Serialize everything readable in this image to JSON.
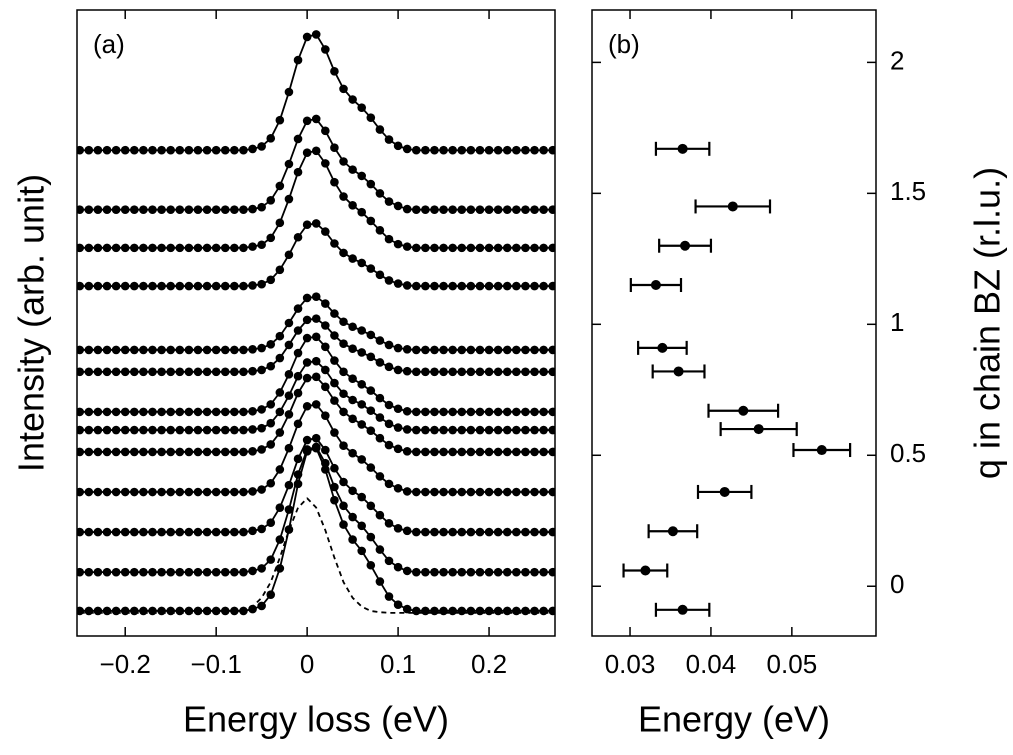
{
  "chart_data": [
    {
      "type": "line",
      "annotation": "(a)",
      "xlabel": "Energy loss (eV)",
      "ylabel": "Intensity (arb. unit)",
      "xlim": [
        -0.253,
        0.2725
      ],
      "ylim": [
        0,
        10
      ],
      "xticks": [
        {
          "value": -0.2,
          "label": "−0.2"
        },
        {
          "value": -0.1,
          "label": "−0.1"
        },
        0,
        0.1,
        0.2
      ],
      "x": [
        -0.25,
        -0.24,
        -0.23,
        -0.22,
        -0.21,
        -0.2,
        -0.19,
        -0.18,
        -0.17,
        -0.16,
        -0.15,
        -0.14,
        -0.13,
        -0.12,
        -0.11,
        -0.1,
        -0.09,
        -0.08,
        -0.07,
        -0.06,
        -0.05,
        -0.04,
        -0.03,
        -0.02,
        -0.01,
        0,
        0.01,
        0.02,
        0.03,
        0.04,
        0.05,
        0.06,
        0.07,
        0.08,
        0.09,
        0.1,
        0.11,
        0.12,
        0.13,
        0.14,
        0.15,
        0.16,
        0.17,
        0.18,
        0.19,
        0.2,
        0.21,
        0.22,
        0.23,
        0.24,
        0.25,
        0.26,
        0.27
      ],
      "series": [
        {
          "color": "#000000",
          "dashed": true,
          "markers": false,
          "values": [
            0.37,
            0.37,
            0.37,
            0.37,
            0.37,
            0.37,
            0.37,
            0.37,
            0.37,
            0.37,
            0.37,
            0.37,
            0.37,
            0.37,
            0.37,
            0.37,
            0.37,
            0.38,
            0.4,
            0.47,
            0.61,
            0.86,
            1.25,
            1.69,
            2.05,
            2.2,
            2.05,
            1.69,
            1.25,
            0.86,
            0.61,
            0.47,
            0.4,
            0.38,
            0.37,
            0.37,
            0.37,
            0.37,
            0.37,
            0.37,
            0.37,
            0.37,
            0.37,
            0.37,
            0.37,
            0.37,
            0.37,
            0.37,
            0.37,
            0.37,
            0.37,
            0.37,
            0.37
          ]
        },
        {
          "color": "#000000",
          "markers": true,
          "values": [
            7.76,
            7.76,
            7.76,
            7.76,
            7.76,
            7.76,
            7.76,
            7.76,
            7.76,
            7.76,
            7.76,
            7.76,
            7.76,
            7.76,
            7.76,
            7.76,
            7.76,
            7.76,
            7.76,
            7.78,
            7.82,
            7.95,
            8.24,
            8.69,
            9.2,
            9.57,
            9.61,
            9.37,
            9.02,
            8.74,
            8.57,
            8.44,
            8.28,
            8.09,
            7.93,
            7.83,
            7.78,
            7.76,
            7.76,
            7.76,
            7.76,
            7.76,
            7.76,
            7.76,
            7.76,
            7.76,
            7.76,
            7.76,
            7.76,
            7.76,
            7.76,
            7.76,
            7.76
          ]
        },
        {
          "color": "#000000",
          "markers": true,
          "values": [
            6.81,
            6.81,
            6.81,
            6.81,
            6.81,
            6.81,
            6.81,
            6.81,
            6.81,
            6.81,
            6.81,
            6.81,
            6.81,
            6.81,
            6.81,
            6.81,
            6.81,
            6.81,
            6.81,
            6.82,
            6.85,
            6.96,
            7.19,
            7.54,
            7.94,
            8.23,
            8.26,
            8.07,
            7.8,
            7.58,
            7.45,
            7.35,
            7.22,
            7.07,
            6.94,
            6.87,
            6.82,
            6.81,
            6.81,
            6.81,
            6.81,
            6.81,
            6.81,
            6.81,
            6.81,
            6.81,
            6.81,
            6.81,
            6.81,
            6.81,
            6.81,
            6.81,
            6.81
          ]
        },
        {
          "color": "#000000",
          "markers": true,
          "values": [
            6.2,
            6.2,
            6.2,
            6.2,
            6.2,
            6.2,
            6.2,
            6.2,
            6.2,
            6.2,
            6.2,
            6.2,
            6.2,
            6.2,
            6.2,
            6.2,
            6.2,
            6.2,
            6.2,
            6.22,
            6.25,
            6.36,
            6.6,
            6.98,
            7.41,
            7.72,
            7.75,
            7.55,
            7.25,
            7.02,
            6.88,
            6.77,
            6.63,
            6.48,
            6.34,
            6.26,
            6.22,
            6.2,
            6.2,
            6.2,
            6.2,
            6.2,
            6.2,
            6.2,
            6.2,
            6.2,
            6.2,
            6.2,
            6.2,
            6.2,
            6.2,
            6.2,
            6.2
          ]
        },
        {
          "color": "#000000",
          "markers": true,
          "values": [
            5.59,
            5.59,
            5.59,
            5.59,
            5.59,
            5.59,
            5.59,
            5.59,
            5.59,
            5.59,
            5.59,
            5.59,
            5.59,
            5.59,
            5.59,
            5.59,
            5.59,
            5.59,
            5.59,
            5.6,
            5.62,
            5.69,
            5.85,
            6.09,
            6.37,
            6.57,
            6.59,
            6.46,
            6.27,
            6.12,
            6.03,
            5.96,
            5.87,
            5.77,
            5.68,
            5.63,
            5.6,
            5.59,
            5.59,
            5.59,
            5.59,
            5.59,
            5.59,
            5.59,
            5.59,
            5.59,
            5.59,
            5.59,
            5.59,
            5.59,
            5.59,
            5.59,
            5.59
          ]
        },
        {
          "color": "#000000",
          "markers": true,
          "values": [
            4.57,
            4.57,
            4.57,
            4.57,
            4.57,
            4.57,
            4.57,
            4.57,
            4.57,
            4.57,
            4.57,
            4.57,
            4.57,
            4.57,
            4.57,
            4.57,
            4.57,
            4.57,
            4.57,
            4.58,
            4.6,
            4.66,
            4.79,
            5.0,
            5.23,
            5.4,
            5.42,
            5.31,
            5.15,
            5.02,
            4.94,
            4.88,
            4.81,
            4.72,
            4.65,
            4.6,
            4.58,
            4.57,
            4.57,
            4.57,
            4.57,
            4.57,
            4.57,
            4.57,
            4.57,
            4.57,
            4.57,
            4.57,
            4.57,
            4.57,
            4.57,
            4.57,
            4.57
          ]
        },
        {
          "color": "#000000",
          "markers": true,
          "values": [
            4.22,
            4.22,
            4.22,
            4.22,
            4.22,
            4.22,
            4.22,
            4.22,
            4.22,
            4.22,
            4.22,
            4.22,
            4.22,
            4.22,
            4.22,
            4.22,
            4.22,
            4.22,
            4.22,
            4.23,
            4.25,
            4.31,
            4.44,
            4.65,
            4.88,
            5.05,
            5.07,
            4.96,
            4.8,
            4.67,
            4.59,
            4.53,
            4.46,
            4.37,
            4.3,
            4.25,
            4.23,
            4.22,
            4.22,
            4.22,
            4.22,
            4.22,
            4.22,
            4.22,
            4.22,
            4.22,
            4.22,
            4.22,
            4.22,
            4.22,
            4.22,
            4.22,
            4.22
          ]
        },
        {
          "color": "#000000",
          "markers": true,
          "values": [
            3.58,
            3.58,
            3.58,
            3.58,
            3.58,
            3.58,
            3.58,
            3.58,
            3.58,
            3.58,
            3.58,
            3.58,
            3.58,
            3.58,
            3.58,
            3.58,
            3.58,
            3.58,
            3.58,
            3.59,
            3.62,
            3.7,
            3.89,
            4.18,
            4.52,
            4.76,
            4.78,
            4.62,
            4.4,
            4.22,
            4.11,
            4.02,
            3.92,
            3.8,
            3.69,
            3.63,
            3.59,
            3.58,
            3.58,
            3.58,
            3.58,
            3.58,
            3.58,
            3.58,
            3.58,
            3.58,
            3.58,
            3.58,
            3.58,
            3.58,
            3.58,
            3.58,
            3.58
          ]
        },
        {
          "color": "#000000",
          "markers": true,
          "values": [
            3.29,
            3.29,
            3.29,
            3.29,
            3.29,
            3.29,
            3.29,
            3.29,
            3.29,
            3.29,
            3.29,
            3.29,
            3.29,
            3.29,
            3.29,
            3.29,
            3.29,
            3.29,
            3.29,
            3.3,
            3.32,
            3.4,
            3.58,
            3.84,
            4.15,
            4.37,
            4.39,
            4.25,
            4.04,
            3.87,
            3.77,
            3.7,
            3.6,
            3.49,
            3.39,
            3.33,
            3.3,
            3.29,
            3.29,
            3.29,
            3.29,
            3.29,
            3.29,
            3.29,
            3.29,
            3.29,
            3.29,
            3.29,
            3.29,
            3.29,
            3.29,
            3.29,
            3.29
          ]
        },
        {
          "color": "#000000",
          "markers": true,
          "values": [
            2.94,
            2.94,
            2.94,
            2.94,
            2.94,
            2.94,
            2.94,
            2.94,
            2.94,
            2.94,
            2.94,
            2.94,
            2.94,
            2.94,
            2.94,
            2.94,
            2.94,
            2.94,
            2.94,
            2.95,
            2.98,
            3.06,
            3.25,
            3.54,
            3.88,
            4.12,
            4.14,
            3.98,
            3.76,
            3.58,
            3.47,
            3.38,
            3.28,
            3.16,
            3.05,
            2.99,
            2.95,
            2.94,
            2.94,
            2.94,
            2.94,
            2.94,
            2.94,
            2.94,
            2.94,
            2.94,
            2.94,
            2.94,
            2.94,
            2.94,
            2.94,
            2.94,
            2.94
          ]
        },
        {
          "color": "#000000",
          "markers": true,
          "values": [
            2.3,
            2.3,
            2.3,
            2.3,
            2.3,
            2.3,
            2.3,
            2.3,
            2.3,
            2.3,
            2.3,
            2.3,
            2.3,
            2.3,
            2.3,
            2.3,
            2.3,
            2.3,
            2.3,
            2.31,
            2.34,
            2.44,
            2.66,
            3.0,
            3.39,
            3.67,
            3.7,
            3.52,
            3.25,
            3.04,
            2.92,
            2.82,
            2.69,
            2.55,
            2.43,
            2.36,
            2.31,
            2.3,
            2.3,
            2.3,
            2.3,
            2.3,
            2.3,
            2.3,
            2.3,
            2.3,
            2.3,
            2.3,
            2.3,
            2.3,
            2.3,
            2.3,
            2.3
          ]
        },
        {
          "color": "#000000",
          "markers": true,
          "values": [
            1.66,
            1.66,
            1.66,
            1.66,
            1.66,
            1.66,
            1.66,
            1.66,
            1.66,
            1.66,
            1.66,
            1.66,
            1.66,
            1.66,
            1.66,
            1.66,
            1.66,
            1.66,
            1.66,
            1.68,
            1.71,
            1.81,
            2.05,
            2.41,
            2.83,
            3.13,
            3.16,
            2.97,
            2.68,
            2.46,
            2.32,
            2.22,
            2.08,
            1.93,
            1.8,
            1.72,
            1.68,
            1.66,
            1.66,
            1.66,
            1.66,
            1.66,
            1.66,
            1.66,
            1.66,
            1.66,
            1.66,
            1.66,
            1.66,
            1.66,
            1.66,
            1.66,
            1.66
          ]
        },
        {
          "color": "#000000",
          "markers": true,
          "values": [
            1.02,
            1.02,
            1.02,
            1.02,
            1.02,
            1.02,
            1.02,
            1.02,
            1.02,
            1.02,
            1.02,
            1.02,
            1.02,
            1.02,
            1.02,
            1.02,
            1.02,
            1.02,
            1.02,
            1.04,
            1.08,
            1.22,
            1.54,
            2.02,
            2.58,
            2.98,
            3.02,
            2.76,
            2.38,
            2.08,
            1.9,
            1.76,
            1.58,
            1.38,
            1.2,
            1.1,
            1.04,
            1.02,
            1.02,
            1.02,
            1.02,
            1.02,
            1.02,
            1.02,
            1.02,
            1.02,
            1.02,
            1.02,
            1.02,
            1.02,
            1.02,
            1.02,
            1.02
          ]
        },
        {
          "color": "#000000",
          "markers": true,
          "values": [
            0.4,
            0.4,
            0.4,
            0.4,
            0.4,
            0.4,
            0.4,
            0.4,
            0.4,
            0.4,
            0.4,
            0.4,
            0.4,
            0.4,
            0.4,
            0.4,
            0.4,
            0.4,
            0.4,
            0.43,
            0.48,
            0.66,
            1.08,
            1.7,
            2.43,
            2.95,
            3.0,
            2.66,
            2.17,
            1.78,
            1.54,
            1.36,
            1.13,
            0.87,
            0.63,
            0.5,
            0.43,
            0.4,
            0.4,
            0.4,
            0.4,
            0.4,
            0.4,
            0.4,
            0.4,
            0.4,
            0.4,
            0.4,
            0.4,
            0.4,
            0.4,
            0.4,
            0.4
          ]
        }
      ]
    },
    {
      "type": "scatter",
      "annotation": "(b)",
      "xlabel": "Energy (eV)",
      "ylabel": "q in chain BZ (r.l.u.)",
      "yaxis": "right",
      "color": "#000000",
      "xlim": [
        0.0253,
        0.0604
      ],
      "ylim": [
        -0.19,
        2.2
      ],
      "xticks": [
        0.03,
        0.04,
        0.05
      ],
      "yticks": [
        0,
        0.5,
        1,
        1.5,
        2
      ],
      "x": [
        0.0365,
        0.0427,
        0.0368,
        0.0332,
        0.034,
        0.036,
        0.044,
        0.0459,
        0.0537,
        0.0417,
        0.0353,
        0.0319,
        0.0365
      ],
      "xerr": [
        0.0033,
        0.0046,
        0.0032,
        0.0031,
        0.003,
        0.0032,
        0.0043,
        0.0047,
        0.0035,
        0.0033,
        0.003,
        0.0027,
        0.0033
      ],
      "values": [
        1.67,
        1.45,
        1.3,
        1.15,
        0.91,
        0.82,
        0.67,
        0.6,
        0.52,
        0.36,
        0.21,
        0.06,
        -0.09
      ]
    }
  ]
}
